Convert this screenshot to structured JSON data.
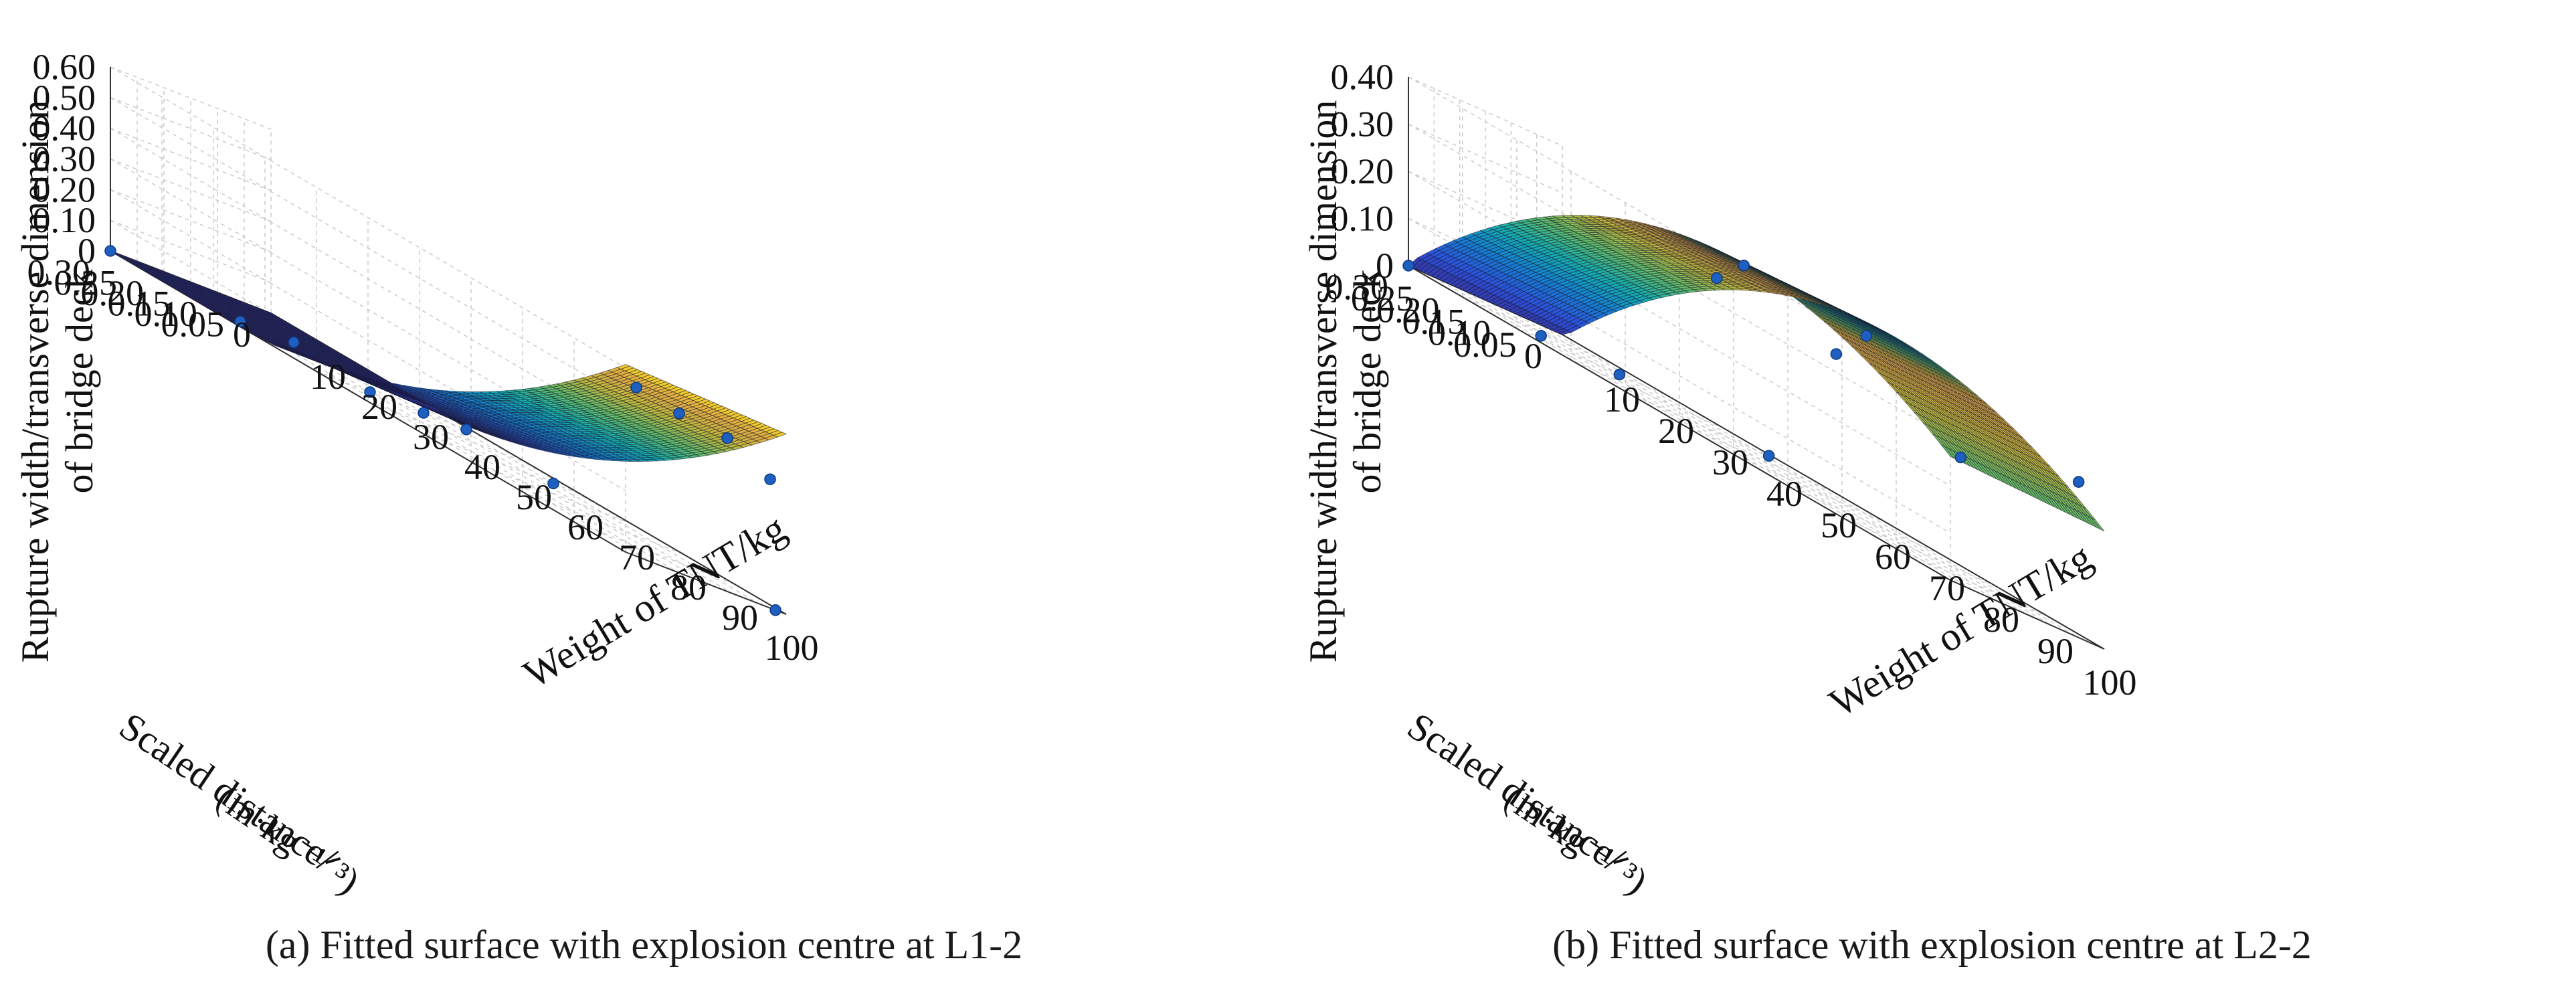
{
  "chart_data": [
    {
      "type": "surface",
      "caption": "(a) Fitted surface with explosion centre at L1-2",
      "zlabel_line1": "Rupture width/transverse dimension",
      "zlabel_line2": "of bridge deck",
      "ylabel_line1": "Scaled distance/",
      "ylabel_line2": "(m·kg⁻¹ᐟ³)",
      "xlabel": "Weight of TNT/kg",
      "xlim": [
        0,
        100
      ],
      "ylim": [
        0,
        0.3
      ],
      "zlim": [
        0,
        0.6
      ],
      "x_ticks": [
        "10",
        "20",
        "30",
        "40",
        "50",
        "60",
        "70",
        "80",
        "90",
        "100"
      ],
      "y_ticks": [
        "0",
        "0.05",
        "0.10",
        "0.15",
        "0.20",
        "0.25",
        "0.30"
      ],
      "z_ticks": [
        "0",
        "0.10",
        "0.20",
        "0.30",
        "0.40",
        "0.50",
        "0.60"
      ],
      "grid": true,
      "surface": {
        "x_scale": 100,
        "y_scale": 0.3,
        "z_max": 0.6,
        "profile": "quadratic",
        "flat_until": 0.25,
        "peak_at": 1.0
      },
      "points": [
        {
          "x": 0,
          "y": 0.3,
          "z": 0.0
        },
        {
          "x": 20,
          "y": 0.25,
          "z": 0.0
        },
        {
          "x": 40,
          "y": 0.2,
          "z": 0.0
        },
        {
          "x": 40,
          "y": 0.1,
          "z": 0.0
        },
        {
          "x": 20,
          "y": 0.15,
          "z": 0.0
        },
        {
          "x": 60,
          "y": 0.05,
          "z": 0.0
        },
        {
          "x": 40,
          "y": 0.02,
          "z": 0.0
        },
        {
          "x": 100,
          "y": 0.02,
          "z": 0.0
        },
        {
          "x": 100,
          "y": 0.28,
          "z": 0.55
        },
        {
          "x": 100,
          "y": 0.2,
          "z": 0.52
        },
        {
          "x": 100,
          "y": 0.11,
          "z": 0.5
        },
        {
          "x": 100,
          "y": 0.03,
          "z": 0.42
        }
      ]
    },
    {
      "type": "surface",
      "caption": "(b) Fitted surface with explosion centre at L2-2",
      "zlabel_line1": "Rupture width/transverse dimension",
      "zlabel_line2": "of bridge deck",
      "ylabel_line1": "Scaled distance/",
      "ylabel_line2": "(m·kg⁻¹ᐟ³)",
      "xlabel": "Weight of TNT/kg",
      "xlim": [
        0,
        100
      ],
      "ylim": [
        0,
        0.3
      ],
      "zlim": [
        0,
        0.4
      ],
      "x_ticks": [
        "10",
        "20",
        "30",
        "40",
        "50",
        "60",
        "70",
        "80",
        "90",
        "100"
      ],
      "y_ticks": [
        "0",
        "0.05",
        "0.10",
        "0.15",
        "0.20",
        "0.25",
        "0.30"
      ],
      "z_ticks": [
        "0",
        "0.10",
        "0.20",
        "0.30",
        "0.40"
      ],
      "grid": true,
      "surface": {
        "x_scale": 100,
        "y_scale": 0.3,
        "z_max": 0.41,
        "profile": "dome",
        "flat_until": 0.0,
        "peak_at": 0.62
      },
      "points": [
        {
          "x": 0,
          "y": 0.3,
          "z": 0.0
        },
        {
          "x": 15,
          "y": 0.2,
          "z": 0.0
        },
        {
          "x": 20,
          "y": 0.1,
          "z": 0.0
        },
        {
          "x": 40,
          "y": 0.02,
          "z": 0.0
        },
        {
          "x": 55,
          "y": 0.28,
          "z": 0.35
        },
        {
          "x": 60,
          "y": 0.1,
          "z": 0.31
        },
        {
          "x": 60,
          "y": 0.28,
          "z": 0.41
        },
        {
          "x": 75,
          "y": 0.2,
          "z": 0.4
        },
        {
          "x": 100,
          "y": 0.05,
          "z": 0.33
        },
        {
          "x": 100,
          "y": 0.28,
          "z": 0.27
        }
      ]
    }
  ]
}
